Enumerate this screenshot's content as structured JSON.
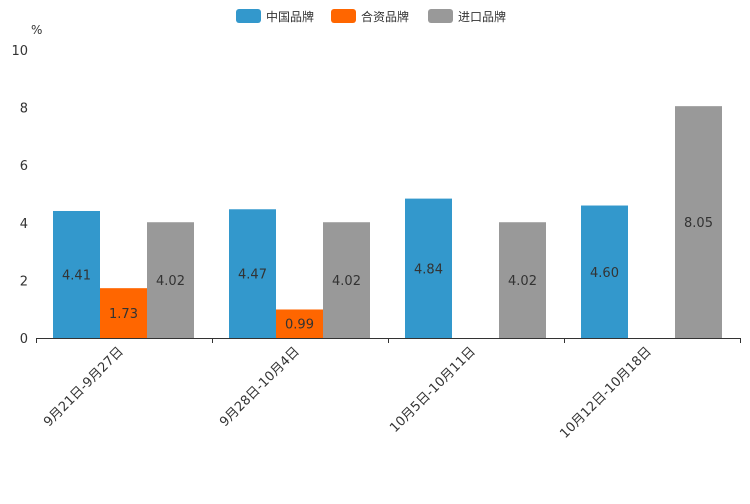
{
  "chart_data": {
    "type": "bar",
    "title": "",
    "xlabel": "",
    "ylabel": "%",
    "ylim": [
      0,
      10
    ],
    "yticks": [
      0,
      2,
      4,
      6,
      8,
      10
    ],
    "grid": false,
    "legend_position": "top-center",
    "categories": [
      "9月21日-9月27日",
      "9月28日-10月4日",
      "10月5日-10月11日",
      "10月12日-10月18日"
    ],
    "series": [
      {
        "name": "中国品牌",
        "color": "#3398cc",
        "values": [
          4.41,
          4.47,
          4.84,
          4.6
        ],
        "labels": [
          "4.41",
          "4.47",
          "4.84",
          "4.60"
        ]
      },
      {
        "name": "合资品牌",
        "color": "#ff6600",
        "values": [
          1.73,
          0.99,
          null,
          null
        ],
        "labels": [
          "1.73",
          "0.99",
          null,
          null
        ]
      },
      {
        "name": "进口品牌",
        "color": "#999999",
        "values": [
          4.02,
          4.02,
          4.02,
          8.05
        ],
        "labels": [
          "4.02",
          "4.02",
          "4.02",
          "8.05"
        ]
      }
    ]
  }
}
